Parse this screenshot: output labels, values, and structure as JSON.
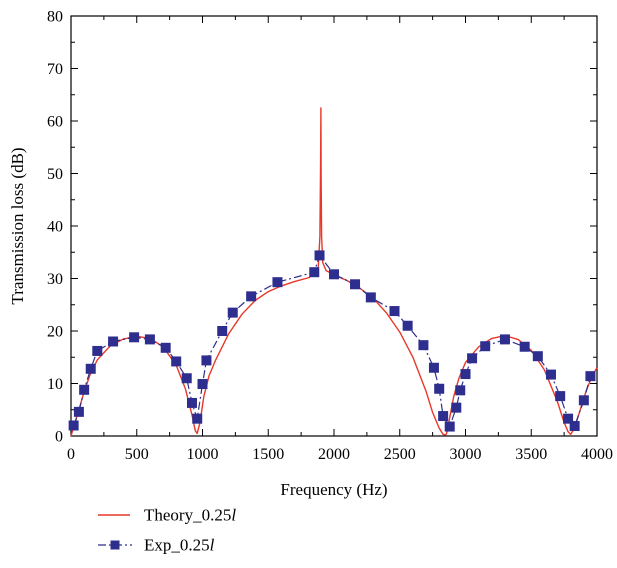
{
  "chart_data": {
    "type": "line",
    "xlabel": "Frequency (Hz)",
    "ylabel": "Transmission loss (dB)",
    "xlim": [
      0,
      4000
    ],
    "ylim": [
      0,
      80
    ],
    "x_ticks": [
      0,
      500,
      1000,
      1500,
      2000,
      2500,
      3000,
      3500,
      4000
    ],
    "y_ticks": [
      0,
      10,
      20,
      30,
      40,
      50,
      60,
      70,
      80
    ],
    "grid": false,
    "legend_position": "bottom-left",
    "series": [
      {
        "name": "Theory_0.25",
        "name_italic_suffix": "l",
        "color": "#e8382a",
        "style": "line",
        "x": [
          0,
          30,
          60,
          100,
          150,
          200,
          300,
          400,
          500,
          600,
          700,
          800,
          870,
          920,
          945,
          960,
          980,
          1010,
          1050,
          1100,
          1200,
          1300,
          1400,
          1500,
          1600,
          1700,
          1800,
          1860,
          1880,
          1893,
          1898,
          1900,
          1902,
          1906,
          1915,
          1940,
          2000,
          2100,
          2200,
          2300,
          2400,
          2500,
          2600,
          2700,
          2750,
          2800,
          2830,
          2850,
          2860,
          2880,
          2910,
          2950,
          3000,
          3100,
          3200,
          3300,
          3400,
          3500,
          3600,
          3700,
          3750,
          3780,
          3800,
          3830,
          3870,
          3920,
          3970,
          4000
        ],
        "y": [
          0,
          2.5,
          5,
          8.5,
          12,
          14.5,
          17.2,
          18.5,
          19,
          18.6,
          17,
          13.5,
          9,
          4,
          1,
          0.5,
          2.5,
          7.5,
          11.5,
          14.5,
          19.5,
          23.2,
          25.8,
          27.5,
          28.6,
          29.4,
          30.1,
          30.8,
          32,
          38,
          52,
          62.5,
          50,
          38,
          33,
          31.5,
          30.7,
          29.6,
          28.1,
          26.2,
          23.4,
          19.8,
          15,
          8.5,
          4.5,
          1.5,
          0.3,
          0.2,
          0.8,
          3.5,
          7.5,
          11,
          14,
          17,
          18.6,
          19.1,
          18.4,
          16.3,
          12.6,
          6.5,
          2.6,
          0.8,
          0.3,
          1.5,
          4.8,
          8.8,
          11.8,
          13
        ]
      },
      {
        "name": "Exp_0.25",
        "name_italic_suffix": "l",
        "color": "#2e2e8f",
        "style": "dash-dot-square",
        "x": [
          20,
          60,
          100,
          150,
          200,
          320,
          480,
          600,
          720,
          800,
          880,
          920,
          960,
          1000,
          1030,
          1150,
          1230,
          1370,
          1570,
          1850,
          1890,
          2000,
          2160,
          2280,
          2460,
          2560,
          2680,
          2760,
          2800,
          2830,
          2880,
          2930,
          2960,
          3000,
          3050,
          3150,
          3300,
          3450,
          3550,
          3650,
          3720,
          3780,
          3830,
          3900,
          3950
        ],
        "y": [
          2,
          4.6,
          8.8,
          12.8,
          16.2,
          18,
          18.8,
          18.4,
          16.8,
          14.2,
          11,
          6.3,
          3.3,
          9.9,
          14.4,
          20,
          23.5,
          26.6,
          29.3,
          31.2,
          34.4,
          30.8,
          28.9,
          26.4,
          23.8,
          21,
          17.3,
          13,
          9,
          3.8,
          1.8,
          5.4,
          8.7,
          11.8,
          14.8,
          17.1,
          18.4,
          17,
          15.2,
          11.7,
          7.6,
          3.3,
          1.9,
          6.8,
          11.4
        ]
      }
    ]
  }
}
